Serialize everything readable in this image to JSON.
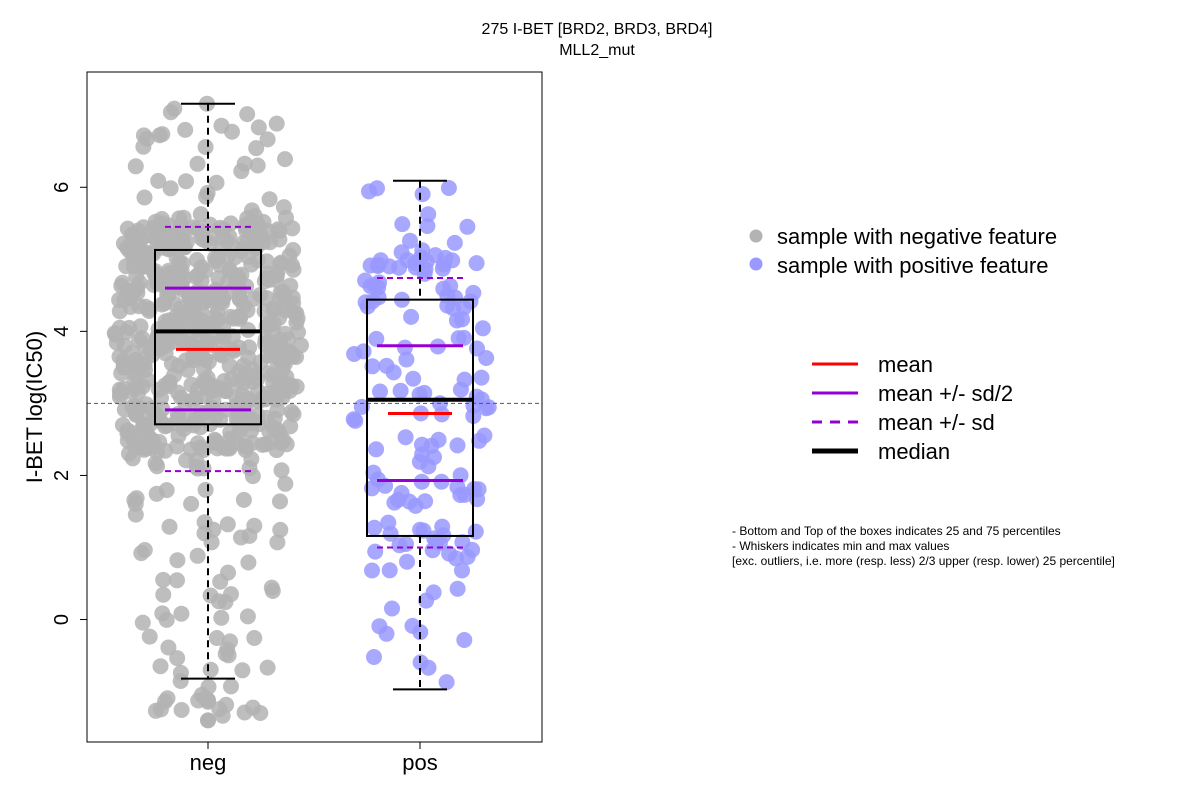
{
  "chart_data": {
    "type": "box",
    "title": "275 I-BET [BRD2, BRD3, BRD4]",
    "subtitle": "MLL2_mut",
    "ylabel": "I-BET log(IC50)",
    "categories": [
      "neg",
      "pos"
    ],
    "ylim": [
      -1.7,
      7.6
    ],
    "yticks": [
      0,
      2,
      4,
      6
    ],
    "reference_line_y": 3.0,
    "groups": [
      {
        "name": "neg",
        "color": "#b3b3b3",
        "whisker_min": -0.82,
        "q1": 2.71,
        "median": 4.0,
        "q3": 5.13,
        "whisker_max": 7.16,
        "mean": 3.75,
        "mean_minus_half_sd": 2.91,
        "mean_plus_half_sd": 4.6,
        "mean_minus_sd": 2.06,
        "mean_plus_sd": 5.45,
        "n_points": 680,
        "point_range": [
          -1.4,
          7.2
        ],
        "outliers": [
          -1.12,
          -1.4
        ]
      },
      {
        "name": "pos",
        "color": "#9999ff",
        "whisker_min": -0.97,
        "q1": 1.16,
        "median": 3.05,
        "q3": 4.44,
        "whisker_max": 6.09,
        "mean": 2.86,
        "mean_minus_half_sd": 1.93,
        "mean_plus_half_sd": 3.8,
        "mean_minus_sd": 1.0,
        "mean_plus_sd": 4.74,
        "n_points": 155,
        "point_range": [
          -0.97,
          6.1
        ]
      }
    ],
    "legend": {
      "position": "right",
      "points": [
        {
          "label": "sample with negative feature",
          "color": "#b3b3b3"
        },
        {
          "label": "sample with positive feature",
          "color": "#9999ff"
        }
      ],
      "lines": [
        {
          "label": "mean",
          "color": "#ff0000",
          "style": "solid"
        },
        {
          "label": "mean +/- sd/2",
          "color": "#9400d3",
          "style": "solid"
        },
        {
          "label": "mean +/- sd",
          "color": "#9400d3",
          "style": "dashed"
        },
        {
          "label": "median",
          "color": "#000000",
          "style": "thick"
        }
      ]
    }
  },
  "notes": [
    "- Bottom and Top of the boxes indicates 25 and 75 percentiles",
    "- Whiskers indicates min and max values",
    "[exc. outliers, i.e. more (resp. less) 2/3 upper (resp. lower) 25 percentile]"
  ]
}
